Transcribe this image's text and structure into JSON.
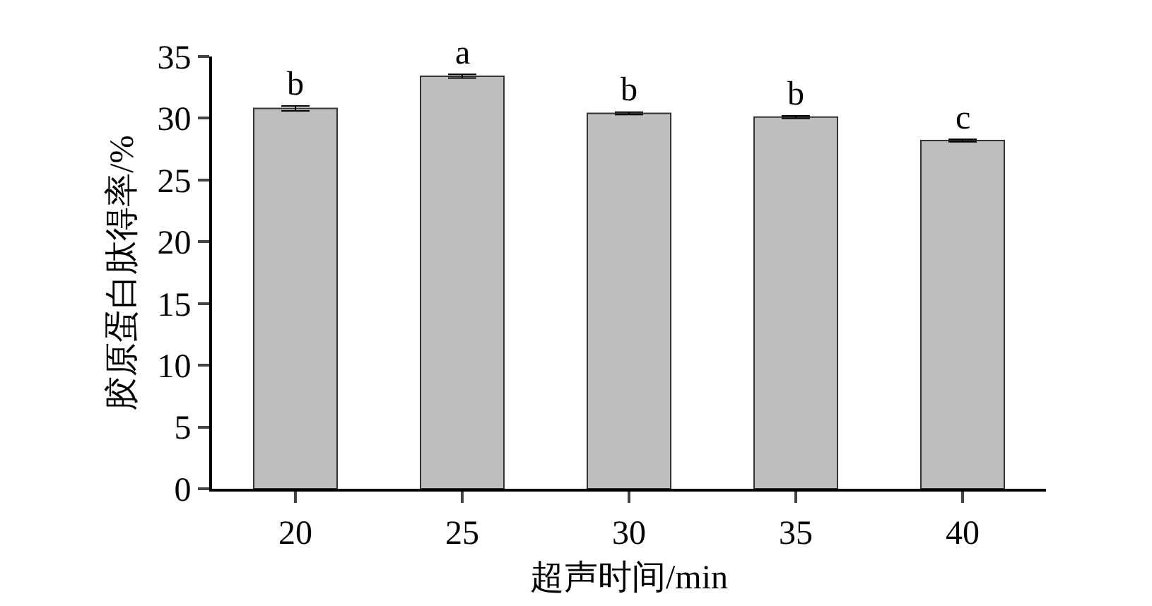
{
  "chart_data": {
    "type": "bar",
    "xlabel": "超声时间/min",
    "ylabel": "胶原蛋白肽得率/%",
    "categories": [
      "20",
      "25",
      "30",
      "35",
      "40"
    ],
    "values": [
      30.8,
      33.4,
      30.4,
      30.1,
      28.2
    ],
    "errors": [
      0.2,
      0.15,
      0.1,
      0.1,
      0.1
    ],
    "color": "#bcbec0",
    "ylim": [
      0,
      35
    ],
    "yticks": [
      0,
      5,
      10,
      15,
      20,
      25,
      30,
      35
    ],
    "grid": false,
    "annotations": [
      {
        "text": "b",
        "x": "20",
        "y": 31
      },
      {
        "text": "a",
        "x": "25",
        "y": 33.55
      },
      {
        "text": "b",
        "x": "30",
        "y": 30.5
      },
      {
        "text": "b",
        "x": "35",
        "y": 30.2
      },
      {
        "text": "c",
        "x": "40",
        "y": 28.3
      }
    ]
  }
}
